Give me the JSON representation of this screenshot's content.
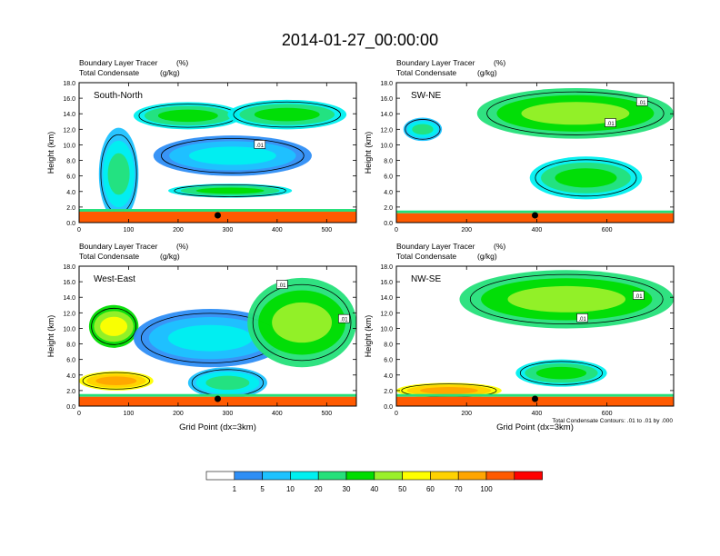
{
  "title": "2014-01-27_00:00:00",
  "chart_data": [
    {
      "type": "heatmap",
      "subtitle_1": "Boundary Layer Tracer",
      "subtitle_1_units": "(%)",
      "subtitle_2": "Total Condensate",
      "subtitle_2_units": "(g/kg)",
      "panel_label": "South-North",
      "ylabel": "Height (km)",
      "xlabel": "",
      "xlim": [
        0,
        560
      ],
      "ylim": [
        0,
        18
      ],
      "xticks": [
        "0",
        "100",
        "200",
        "300",
        "400",
        "500"
      ],
      "yticks": [
        "0.0",
        "2.0",
        "4.0",
        "6.0",
        "8.0",
        "10.0",
        "12.0",
        "14.0",
        "16.0",
        "18.0"
      ],
      "marker_x": 280,
      "contour_labels": [
        {
          "text": ".01",
          "x": 365,
          "y": 10.0
        }
      ],
      "plumes": [
        {
          "x": [
            40,
            120
          ],
          "z": [
            0.3,
            12.2
          ],
          "level": 20
        },
        {
          "x": [
            110,
            330
          ],
          "z": [
            12.0,
            15.5
          ],
          "level": 30
        },
        {
          "x": [
            300,
            540
          ],
          "z": [
            12.0,
            15.8
          ],
          "level": 30
        },
        {
          "x": [
            150,
            470
          ],
          "z": [
            6.0,
            11.2
          ],
          "level": 10
        },
        {
          "x": [
            180,
            430
          ],
          "z": [
            3.2,
            5.0
          ],
          "level": 30
        },
        {
          "x": [
            0,
            560
          ],
          "z": [
            0,
            1.4
          ],
          "level": 100
        }
      ]
    },
    {
      "type": "heatmap",
      "subtitle_1": "Boundary Layer Tracer",
      "subtitle_1_units": "(%)",
      "subtitle_2": "Total Condensate",
      "subtitle_2_units": "(g/kg)",
      "panel_label": "SW-NE",
      "ylabel": "Height (km)",
      "xlabel": "",
      "xlim": [
        0,
        790
      ],
      "ylim": [
        0,
        18
      ],
      "xticks": [
        "0",
        "200",
        "400",
        "600"
      ],
      "yticks": [
        "0.0",
        "2.0",
        "4.0",
        "6.0",
        "8.0",
        "10.0",
        "12.0",
        "14.0",
        "16.0",
        "18.0"
      ],
      "marker_x": 395,
      "contour_labels": [
        {
          "text": ".01",
          "x": 700,
          "y": 15.5
        },
        {
          "text": ".01",
          "x": 610,
          "y": 12.8
        }
      ],
      "plumes": [
        {
          "x": [
            230,
            790
          ],
          "z": [
            10.8,
            17.3
          ],
          "level": 40
        },
        {
          "x": [
            380,
            700
          ],
          "z": [
            3.0,
            8.5
          ],
          "level": 30
        },
        {
          "x": [
            20,
            130
          ],
          "z": [
            10.5,
            13.5
          ],
          "level": 20
        },
        {
          "x": [
            0,
            790
          ],
          "z": [
            0,
            1.2
          ],
          "level": 100
        }
      ]
    },
    {
      "type": "heatmap",
      "subtitle_1": "Boundary Layer Tracer",
      "subtitle_1_units": "(%)",
      "subtitle_2": "Total Condensate",
      "subtitle_2_units": "(g/kg)",
      "panel_label": "West-East",
      "ylabel": "Height (km)",
      "xlabel": "Grid Point (dx=3km)",
      "xlim": [
        0,
        560
      ],
      "ylim": [
        0,
        18
      ],
      "xticks": [
        "0",
        "100",
        "200",
        "300",
        "400",
        "500"
      ],
      "yticks": [
        "0.0",
        "2.0",
        "4.0",
        "6.0",
        "8.0",
        "10.0",
        "12.0",
        "14.0",
        "16.0",
        "18.0"
      ],
      "marker_x": 280,
      "contour_labels": [
        {
          "text": ".01",
          "x": 410,
          "y": 15.6
        },
        {
          "text": ".01",
          "x": 535,
          "y": 11.2
        }
      ],
      "plumes": [
        {
          "x": [
            20,
            120
          ],
          "z": [
            7.5,
            13.0
          ],
          "level": 50
        },
        {
          "x": [
            110,
            420
          ],
          "z": [
            5.0,
            12.5
          ],
          "level": 10
        },
        {
          "x": [
            340,
            560
          ],
          "z": [
            5.0,
            16.5
          ],
          "level": 40
        },
        {
          "x": [
            0,
            150
          ],
          "z": [
            2.0,
            4.5
          ],
          "level": 70
        },
        {
          "x": [
            220,
            380
          ],
          "z": [
            1.0,
            5.0
          ],
          "level": 20
        },
        {
          "x": [
            0,
            560
          ],
          "z": [
            0,
            1.2
          ],
          "level": 100
        }
      ]
    },
    {
      "type": "heatmap",
      "subtitle_1": "Boundary Layer Tracer",
      "subtitle_1_units": "(%)",
      "subtitle_2": "Total Condensate",
      "subtitle_2_units": "(g/kg)",
      "panel_label": "NW-SE",
      "ylabel": "Height (km)",
      "xlabel": "Grid Point (dx=3km)",
      "xlim": [
        0,
        790
      ],
      "ylim": [
        0,
        18
      ],
      "xticks": [
        "0",
        "200",
        "400",
        "600"
      ],
      "yticks": [
        "0.0",
        "2.0",
        "4.0",
        "6.0",
        "8.0",
        "10.0",
        "12.0",
        "14.0",
        "16.0",
        "18.0"
      ],
      "marker_x": 395,
      "contour_note": "Total Condensate Contours: .01 to .01 by .000",
      "contour_labels": [
        {
          "text": ".01",
          "x": 690,
          "y": 14.2
        },
        {
          "text": ".01",
          "x": 530,
          "y": 11.3
        }
      ],
      "plumes": [
        {
          "x": [
            180,
            790
          ],
          "z": [
            10.0,
            17.5
          ],
          "level": 40
        },
        {
          "x": [
            340,
            600
          ],
          "z": [
            2.5,
            6.0
          ],
          "level": 30
        },
        {
          "x": [
            0,
            300
          ],
          "z": [
            1.0,
            3.0
          ],
          "level": 70
        },
        {
          "x": [
            0,
            790
          ],
          "z": [
            0,
            1.2
          ],
          "level": 100
        }
      ]
    }
  ],
  "colorbar": {
    "levels": [
      "1",
      "5",
      "10",
      "20",
      "30",
      "40",
      "50",
      "60",
      "70",
      "100"
    ],
    "colors": [
      "#ffffff",
      "#2e8ef5",
      "#1ec2ff",
      "#00f0f0",
      "#25e07a",
      "#00dd00",
      "#9af02a",
      "#ffff00",
      "#ffd200",
      "#ffa500",
      "#ff5a00",
      "#ff0000"
    ]
  }
}
